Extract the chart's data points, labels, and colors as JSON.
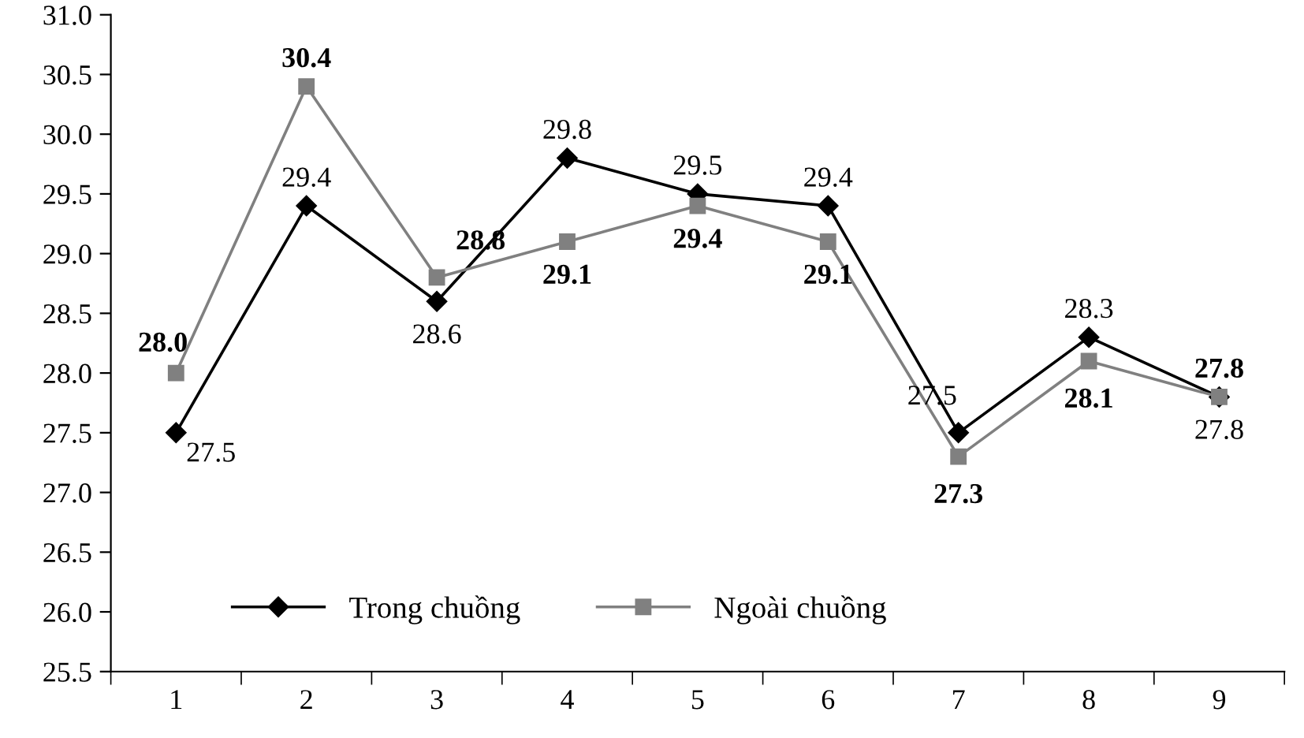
{
  "chart_data": {
    "type": "line",
    "categories": [
      "1",
      "2",
      "3",
      "4",
      "5",
      "6",
      "7",
      "8",
      "9"
    ],
    "series": [
      {
        "name": "Trong chuồng",
        "color": "#000000",
        "marker": "diamond",
        "values": [
          27.5,
          29.4,
          28.6,
          29.8,
          29.5,
          29.4,
          27.5,
          28.3,
          27.8
        ],
        "value_labels": [
          "27.5",
          "29.4",
          "28.6",
          "29.8",
          "29.5",
          "29.4",
          "27.5",
          "28.3",
          "27.8"
        ]
      },
      {
        "name": "Ngoài chuồng",
        "color": "#808080",
        "marker": "square",
        "values": [
          28.0,
          30.4,
          28.8,
          29.1,
          29.4,
          29.1,
          27.3,
          28.1,
          27.8
        ],
        "value_labels": [
          "28.0",
          "30.4",
          "28.8",
          "29.1",
          "29.4",
          "29.1",
          "27.3",
          "28.1",
          "27.8"
        ]
      }
    ],
    "ylim": [
      25.5,
      31.0
    ],
    "yticks": [
      25.5,
      {
        "value": 26,
        "label": "26.0"
      },
      26.5,
      {
        "value": 27,
        "label": "27.0"
      },
      27.5,
      {
        "value": 28,
        "label": "28.0"
      },
      28.5,
      {
        "value": 29,
        "label": "29.0"
      },
      29.5,
      {
        "value": 30,
        "label": "30.0"
      },
      30.5,
      {
        "value": 31,
        "label": "31.0"
      }
    ],
    "grid": false,
    "legend": "bottom left",
    "line_style": "solid"
  }
}
